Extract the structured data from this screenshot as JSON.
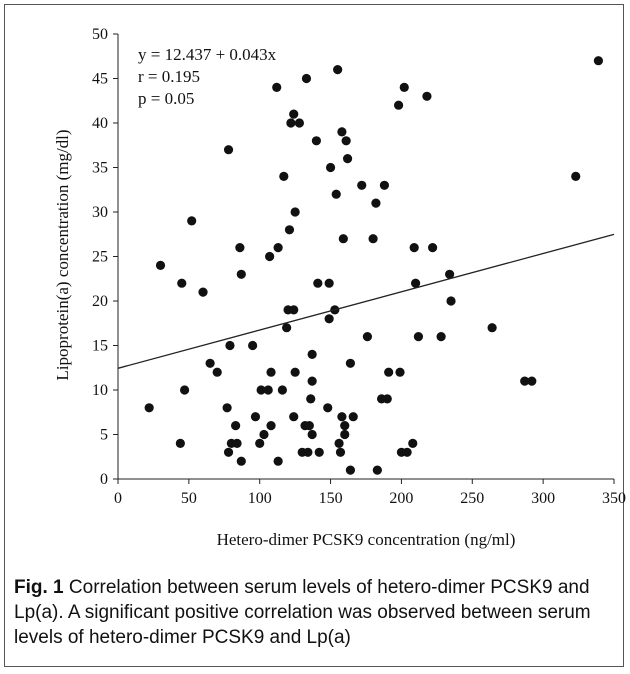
{
  "chart_data": {
    "type": "scatter",
    "xlabel": "Hetero-dimer PCSK9 concentration (ng/ml)",
    "ylabel": "Lipoprotein(a) concentration (mg/dl)",
    "xlim": [
      0,
      350
    ],
    "ylim": [
      0,
      50
    ],
    "xticks": [
      0,
      50,
      100,
      150,
      200,
      250,
      300,
      350
    ],
    "yticks": [
      0,
      5,
      10,
      15,
      20,
      25,
      30,
      35,
      40,
      45,
      50
    ],
    "grid": false,
    "annotations": [
      "y = 12.437 + 0.043x",
      "r = 0.195",
      "p = 0.05"
    ],
    "trendline": {
      "intercept": 12.437,
      "slope": 0.043
    },
    "marker_color": "#111111",
    "points": [
      [
        22,
        8
      ],
      [
        30,
        24
      ],
      [
        44,
        4
      ],
      [
        45,
        22
      ],
      [
        47,
        10
      ],
      [
        52,
        29
      ],
      [
        60,
        21
      ],
      [
        65,
        13
      ],
      [
        70,
        12
      ],
      [
        77,
        8
      ],
      [
        78,
        3
      ],
      [
        78,
        37
      ],
      [
        79,
        15
      ],
      [
        80,
        4
      ],
      [
        83,
        6
      ],
      [
        84,
        4
      ],
      [
        86,
        26
      ],
      [
        87,
        23
      ],
      [
        87,
        2
      ],
      [
        95,
        15
      ],
      [
        97,
        7
      ],
      [
        100,
        4
      ],
      [
        101,
        10
      ],
      [
        103,
        5
      ],
      [
        106,
        10
      ],
      [
        107,
        25
      ],
      [
        108,
        12
      ],
      [
        108,
        6
      ],
      [
        112,
        44
      ],
      [
        113,
        2
      ],
      [
        113,
        26
      ],
      [
        116,
        10
      ],
      [
        117,
        34
      ],
      [
        119,
        17
      ],
      [
        120,
        19
      ],
      [
        121,
        28
      ],
      [
        122,
        40
      ],
      [
        124,
        41
      ],
      [
        124,
        19
      ],
      [
        124,
        7
      ],
      [
        125,
        30
      ],
      [
        125,
        12
      ],
      [
        128,
        40
      ],
      [
        130,
        3
      ],
      [
        132,
        6
      ],
      [
        133,
        45
      ],
      [
        134,
        3
      ],
      [
        135,
        6
      ],
      [
        136,
        9
      ],
      [
        137,
        5
      ],
      [
        137,
        11
      ],
      [
        137,
        14
      ],
      [
        140,
        38
      ],
      [
        141,
        22
      ],
      [
        142,
        3
      ],
      [
        148,
        8
      ],
      [
        149,
        22
      ],
      [
        149,
        18
      ],
      [
        150,
        35
      ],
      [
        153,
        19
      ],
      [
        154,
        32
      ],
      [
        155,
        46
      ],
      [
        156,
        4
      ],
      [
        157,
        3
      ],
      [
        158,
        7
      ],
      [
        158,
        39
      ],
      [
        159,
        27
      ],
      [
        160,
        6
      ],
      [
        160,
        5
      ],
      [
        161,
        38
      ],
      [
        162,
        36
      ],
      [
        164,
        1
      ],
      [
        164,
        13
      ],
      [
        166,
        7
      ],
      [
        172,
        33
      ],
      [
        176,
        16
      ],
      [
        180,
        27
      ],
      [
        182,
        31
      ],
      [
        183,
        1
      ],
      [
        186,
        9
      ],
      [
        188,
        33
      ],
      [
        190,
        9
      ],
      [
        191,
        12
      ],
      [
        198,
        42
      ],
      [
        199,
        12
      ],
      [
        200,
        3
      ],
      [
        202,
        44
      ],
      [
        204,
        3
      ],
      [
        208,
        4
      ],
      [
        209,
        26
      ],
      [
        210,
        22
      ],
      [
        212,
        16
      ],
      [
        218,
        43
      ],
      [
        222,
        26
      ],
      [
        228,
        16
      ],
      [
        234,
        23
      ],
      [
        235,
        20
      ],
      [
        264,
        17
      ],
      [
        287,
        11
      ],
      [
        292,
        11
      ],
      [
        323,
        34
      ],
      [
        339,
        47
      ]
    ]
  },
  "caption": {
    "label": "Fig. 1",
    "text": " Correlation between serum levels of hetero-dimer PCSK9 and Lp(a). A significant positive correlation was observed between serum levels of hetero-dimer PCSK9 and Lp(a)"
  }
}
